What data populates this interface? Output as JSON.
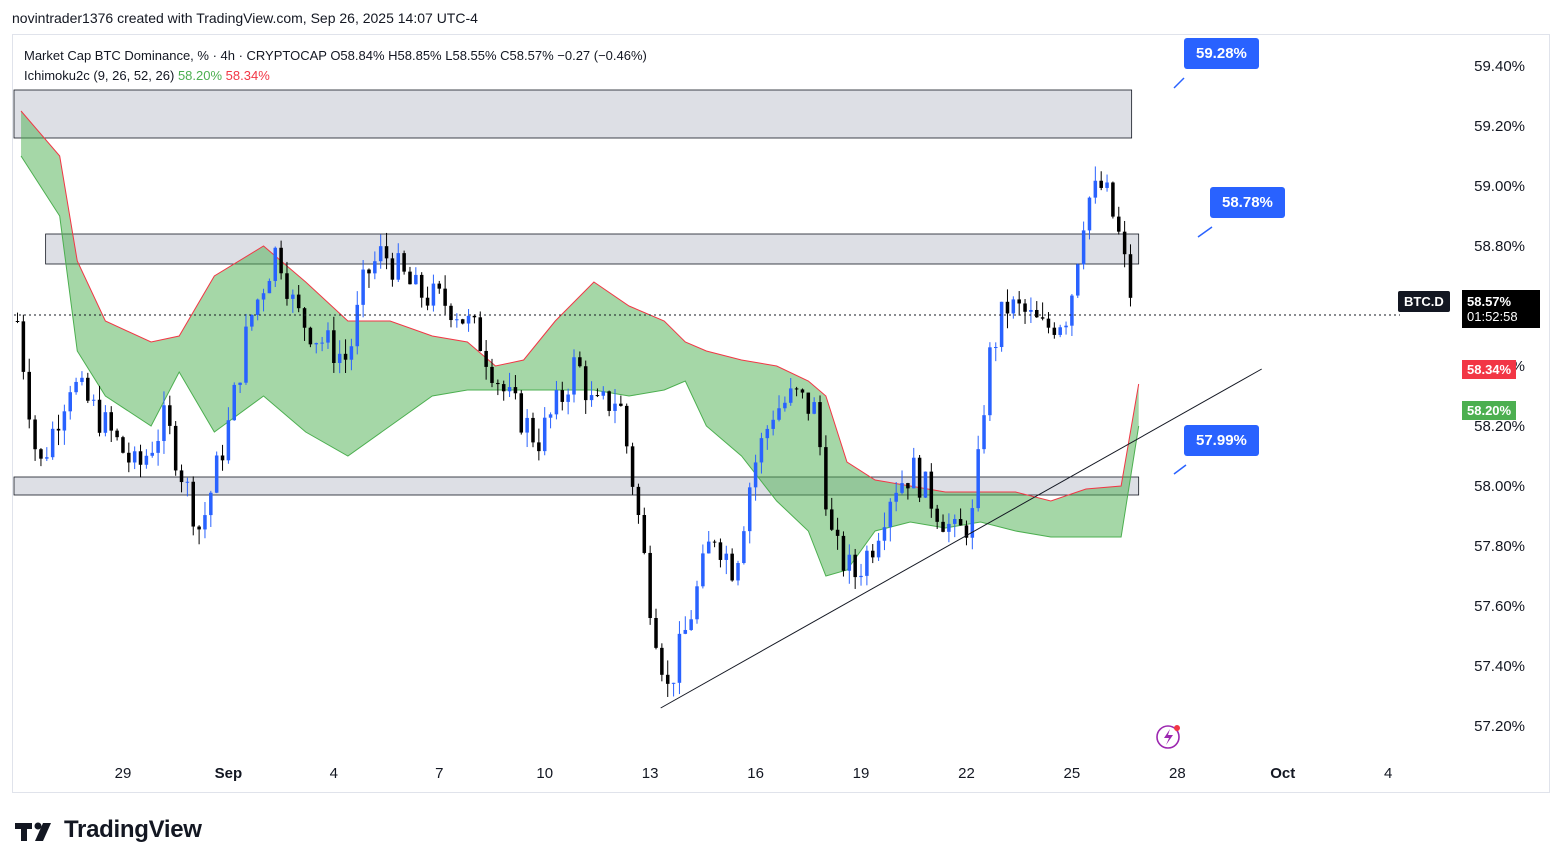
{
  "header": {
    "credit": "novintrader1376 created with TradingView.com, Sep 26, 2025 14:07 UTC-4"
  },
  "legend": {
    "line1": "Market Cap BTC Dominance, % · 4h · CRYPTOCAP  O58.84%  H58.85%  L58.55%  C58.57%  −0.27 (−0.46%)",
    "indicator_name": "Ichimoku2c (9, 26, 52, 26)",
    "indicator_val1": "58.20%",
    "indicator_val2": "58.34%"
  },
  "callouts": {
    "top": "59.28%",
    "mid": "58.78%",
    "low": "57.99%"
  },
  "price_scale": {
    "ticker": "BTC.D",
    "last_price": "58.57%",
    "countdown": "01:52:58",
    "cloud_a": "58.34%",
    "cloud_b": "58.20%"
  },
  "brand": {
    "name": "TradingView"
  },
  "colors": {
    "up": "#2962ff",
    "down": "#000000",
    "cloud": "#4caf50",
    "cloud_edge": "#f23645",
    "zone": "#d1d4dc",
    "badge_red": "#f23645",
    "badge_green": "#4caf50"
  },
  "chart_data": {
    "type": "candlestick",
    "title": "Market Cap BTC Dominance, % · 4h · CRYPTOCAP",
    "ylim": [
      57.1,
      59.5
    ],
    "y_ticks": [
      "59.40%",
      "59.20%",
      "59.00%",
      "58.80%",
      "58.60%",
      "58.40%",
      "58.20%",
      "58.00%",
      "57.80%",
      "57.60%",
      "57.40%",
      "57.20%"
    ],
    "x_ticks": [
      {
        "label": "29",
        "day": 0
      },
      {
        "label": "Sep",
        "day": 3
      },
      {
        "label": "4",
        "day": 6
      },
      {
        "label": "7",
        "day": 9
      },
      {
        "label": "10",
        "day": 12
      },
      {
        "label": "13",
        "day": 15
      },
      {
        "label": "16",
        "day": 18
      },
      {
        "label": "19",
        "day": 21
      },
      {
        "label": "22",
        "day": 24
      },
      {
        "label": "25",
        "day": 27
      },
      {
        "label": "28",
        "day": 30
      },
      {
        "label": "Oct",
        "day": 33
      },
      {
        "label": "4",
        "day": 36
      }
    ],
    "x_domain_days": [
      -3.1,
      37.9
    ],
    "last_price": 58.57,
    "anchor_points": [
      {
        "day": -3.0,
        "price": 58.55
      },
      {
        "day": -2.4,
        "price": 58.05
      },
      {
        "day": -1.5,
        "price": 58.35
      },
      {
        "day": -0.8,
        "price": 58.25
      },
      {
        "day": 0.4,
        "price": 58.05
      },
      {
        "day": 1.2,
        "price": 58.22
      },
      {
        "day": 2.2,
        "price": 57.85
      },
      {
        "day": 3.0,
        "price": 58.2
      },
      {
        "day": 3.6,
        "price": 58.55
      },
      {
        "day": 4.4,
        "price": 58.8
      },
      {
        "day": 4.9,
        "price": 58.58
      },
      {
        "day": 5.5,
        "price": 58.5
      },
      {
        "day": 6.4,
        "price": 58.42
      },
      {
        "day": 6.9,
        "price": 58.7
      },
      {
        "day": 7.4,
        "price": 58.78
      },
      {
        "day": 8.3,
        "price": 58.65
      },
      {
        "day": 9.4,
        "price": 58.6
      },
      {
        "day": 10.1,
        "price": 58.5
      },
      {
        "day": 10.9,
        "price": 58.3
      },
      {
        "day": 11.8,
        "price": 58.15
      },
      {
        "day": 12.5,
        "price": 58.3
      },
      {
        "day": 12.9,
        "price": 58.42
      },
      {
        "day": 13.4,
        "price": 58.25
      },
      {
        "day": 14.1,
        "price": 58.3
      },
      {
        "day": 14.6,
        "price": 57.95
      },
      {
        "day": 15.0,
        "price": 57.62
      },
      {
        "day": 15.5,
        "price": 57.32
      },
      {
        "day": 16.1,
        "price": 57.55
      },
      {
        "day": 16.8,
        "price": 57.85
      },
      {
        "day": 17.4,
        "price": 57.72
      },
      {
        "day": 17.9,
        "price": 58.05
      },
      {
        "day": 18.5,
        "price": 58.25
      },
      {
        "day": 19.1,
        "price": 58.3
      },
      {
        "day": 19.7,
        "price": 58.25
      },
      {
        "day": 20.2,
        "price": 57.8
      },
      {
        "day": 20.8,
        "price": 57.7
      },
      {
        "day": 21.3,
        "price": 57.8
      },
      {
        "day": 21.9,
        "price": 58.0
      },
      {
        "day": 22.5,
        "price": 58.05
      },
      {
        "day": 23.2,
        "price": 57.92
      },
      {
        "day": 23.7,
        "price": 57.83
      },
      {
        "day": 24.2,
        "price": 57.9
      },
      {
        "day": 24.6,
        "price": 58.4
      },
      {
        "day": 25.1,
        "price": 58.6
      },
      {
        "day": 25.6,
        "price": 58.58
      },
      {
        "day": 26.2,
        "price": 58.52
      },
      {
        "day": 26.9,
        "price": 58.58
      },
      {
        "day": 27.4,
        "price": 58.95
      },
      {
        "day": 27.9,
        "price": 59.0
      },
      {
        "day": 28.3,
        "price": 58.85
      },
      {
        "day": 28.8,
        "price": 58.57
      }
    ],
    "cloud_upper": [
      {
        "day": -2.9,
        "price": 59.25
      },
      {
        "day": -1.8,
        "price": 59.1
      },
      {
        "day": -1.3,
        "price": 58.75
      },
      {
        "day": -0.5,
        "price": 58.55
      },
      {
        "day": 0.8,
        "price": 58.48
      },
      {
        "day": 1.6,
        "price": 58.5
      },
      {
        "day": 2.6,
        "price": 58.7
      },
      {
        "day": 4.0,
        "price": 58.8
      },
      {
        "day": 5.2,
        "price": 58.68
      },
      {
        "day": 6.4,
        "price": 58.55
      },
      {
        "day": 7.6,
        "price": 58.55
      },
      {
        "day": 8.8,
        "price": 58.5
      },
      {
        "day": 9.8,
        "price": 58.48
      },
      {
        "day": 10.6,
        "price": 58.4
      },
      {
        "day": 11.4,
        "price": 58.42
      },
      {
        "day": 12.3,
        "price": 58.55
      },
      {
        "day": 13.4,
        "price": 58.68
      },
      {
        "day": 14.4,
        "price": 58.6
      },
      {
        "day": 15.4,
        "price": 58.55
      },
      {
        "day": 16.0,
        "price": 58.48
      },
      {
        "day": 16.6,
        "price": 58.45
      },
      {
        "day": 17.6,
        "price": 58.42
      },
      {
        "day": 18.6,
        "price": 58.4
      },
      {
        "day": 19.5,
        "price": 58.35
      },
      {
        "day": 20.0,
        "price": 58.3
      },
      {
        "day": 20.6,
        "price": 58.08
      },
      {
        "day": 21.4,
        "price": 58.02
      },
      {
        "day": 22.4,
        "price": 58.0
      },
      {
        "day": 23.4,
        "price": 57.98
      },
      {
        "day": 24.4,
        "price": 57.98
      },
      {
        "day": 25.4,
        "price": 57.98
      },
      {
        "day": 26.4,
        "price": 57.95
      },
      {
        "day": 27.4,
        "price": 57.99
      },
      {
        "day": 28.4,
        "price": 58.0
      },
      {
        "day": 28.9,
        "price": 58.34
      }
    ],
    "cloud_lower": [
      {
        "day": -2.9,
        "price": 59.1
      },
      {
        "day": -1.8,
        "price": 58.9
      },
      {
        "day": -1.3,
        "price": 58.45
      },
      {
        "day": -0.5,
        "price": 58.3
      },
      {
        "day": 0.8,
        "price": 58.2
      },
      {
        "day": 1.6,
        "price": 58.38
      },
      {
        "day": 2.6,
        "price": 58.18
      },
      {
        "day": 4.0,
        "price": 58.3
      },
      {
        "day": 5.2,
        "price": 58.18
      },
      {
        "day": 6.4,
        "price": 58.1
      },
      {
        "day": 7.6,
        "price": 58.2
      },
      {
        "day": 8.8,
        "price": 58.3
      },
      {
        "day": 9.8,
        "price": 58.32
      },
      {
        "day": 10.6,
        "price": 58.32
      },
      {
        "day": 11.4,
        "price": 58.32
      },
      {
        "day": 12.3,
        "price": 58.32
      },
      {
        "day": 13.4,
        "price": 58.32
      },
      {
        "day": 14.4,
        "price": 58.3
      },
      {
        "day": 15.4,
        "price": 58.32
      },
      {
        "day": 16.0,
        "price": 58.35
      },
      {
        "day": 16.6,
        "price": 58.2
      },
      {
        "day": 17.6,
        "price": 58.1
      },
      {
        "day": 18.6,
        "price": 57.95
      },
      {
        "day": 19.5,
        "price": 57.85
      },
      {
        "day": 20.0,
        "price": 57.7
      },
      {
        "day": 20.6,
        "price": 57.72
      },
      {
        "day": 21.4,
        "price": 57.85
      },
      {
        "day": 22.4,
        "price": 57.88
      },
      {
        "day": 23.4,
        "price": 57.86
      },
      {
        "day": 24.4,
        "price": 57.88
      },
      {
        "day": 25.4,
        "price": 57.85
      },
      {
        "day": 26.4,
        "price": 57.83
      },
      {
        "day": 27.4,
        "price": 57.83
      },
      {
        "day": 28.4,
        "price": 57.83
      },
      {
        "day": 28.9,
        "price": 58.2
      }
    ],
    "zones": [
      {
        "from_day": -3.1,
        "to_day": 28.7,
        "low": 59.16,
        "high": 59.32
      },
      {
        "from_day": -2.2,
        "to_day": 28.9,
        "low": 58.74,
        "high": 58.84
      },
      {
        "from_day": -3.1,
        "to_day": 28.9,
        "low": 57.97,
        "high": 58.03
      }
    ],
    "trendline": [
      {
        "day": 15.3,
        "price": 57.26
      },
      {
        "day": 32.4,
        "price": 58.39
      }
    ]
  }
}
